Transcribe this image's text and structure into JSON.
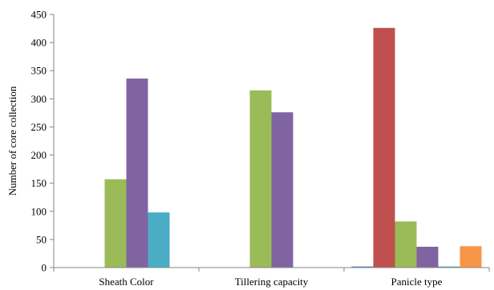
{
  "chart_data": {
    "type": "bar",
    "title": "",
    "xlabel": "",
    "ylabel": "Number of core collection",
    "ylim": [
      0,
      450
    ],
    "ytick_step": 50,
    "grid": false,
    "legend": "none",
    "categories": [
      "Sheath Color",
      "Tillering capacity",
      "Panicle type"
    ],
    "series": [
      {
        "color": "#4F81BD",
        "values": [
          0,
          0,
          2
        ]
      },
      {
        "color": "#C0504D",
        "values": [
          0,
          0,
          426
        ]
      },
      {
        "color": "#9BBB59",
        "values": [
          157,
          315,
          82
        ]
      },
      {
        "color": "#8064A2",
        "values": [
          336,
          276,
          37
        ]
      },
      {
        "color": "#4BACC6",
        "values": [
          98,
          0,
          2
        ]
      },
      {
        "color": "#F79646",
        "values": [
          0,
          0,
          38
        ]
      }
    ]
  }
}
